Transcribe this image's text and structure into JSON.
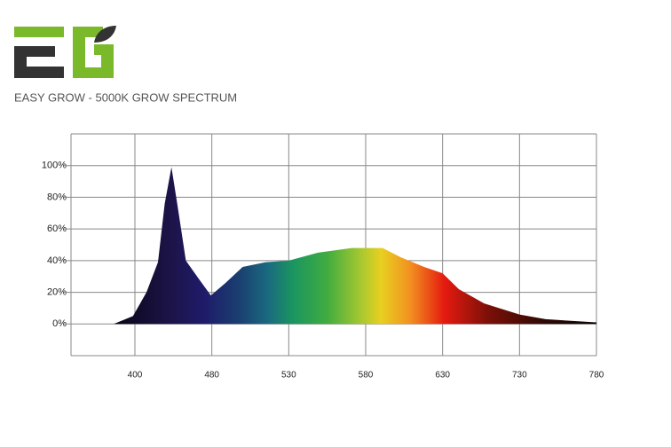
{
  "chart_data": {
    "type": "area",
    "title": "EASY GROW - 5000K GROW SPECTRUM",
    "x": [
      378,
      398,
      412,
      424,
      431,
      438,
      444,
      453,
      467,
      479,
      489,
      500,
      515,
      530,
      549,
      571,
      591,
      603,
      618,
      630,
      651,
      684,
      730,
      747,
      780
    ],
    "values": [
      0,
      5,
      20,
      39,
      76,
      99,
      76,
      40,
      28,
      18,
      26,
      36,
      39,
      40,
      45,
      48,
      48,
      42,
      36,
      32,
      22,
      13,
      6,
      3,
      1
    ],
    "xlim": [
      335,
      780
    ],
    "xticks": [
      400,
      480,
      530,
      580,
      630,
      730,
      780
    ],
    "ylim": [
      -20,
      120
    ],
    "yticks": [
      {
        "value": 0,
        "label": "0%"
      },
      {
        "value": 20,
        "label": "20%"
      },
      {
        "value": 40,
        "label": "40%"
      },
      {
        "value": 60,
        "label": "60%"
      },
      {
        "value": 80,
        "label": "80%"
      },
      {
        "value": 100,
        "label": "100%"
      }
    ],
    "grid": true
  }
}
